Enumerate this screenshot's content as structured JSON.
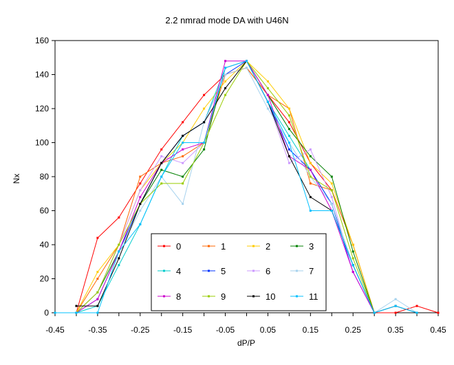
{
  "chart_data": {
    "type": "line",
    "title": "2.2 nmrad mode DA with U46N",
    "xlabel": "dP/P",
    "ylabel": "Nx",
    "xlim": [
      -0.45,
      0.45
    ],
    "ylim": [
      0,
      160
    ],
    "x_ticks": [
      "-0.45",
      "-0.35",
      "-0.25",
      "-0.15",
      "-0.05",
      "0.05",
      "0.15",
      "0.25",
      "0.35",
      "0.45"
    ],
    "y_ticks": [
      "0",
      "20",
      "40",
      "60",
      "80",
      "100",
      "120",
      "140",
      "160"
    ],
    "grid": false,
    "legend_position": "bottom-center",
    "series": [
      {
        "name": "0",
        "color": "#ff0000",
        "x": [
          -0.45,
          -0.4,
          -0.35,
          -0.3,
          -0.25,
          -0.2,
          -0.15,
          -0.1,
          -0.05,
          0,
          0.05,
          0.1,
          0.15,
          0.2,
          0.25,
          0.3,
          0.35,
          0.4,
          0.45
        ],
        "y": [
          0,
          0,
          44,
          56,
          76,
          96,
          112,
          128,
          140,
          144,
          128,
          112,
          88,
          72,
          40,
          0,
          0,
          4,
          0
        ]
      },
      {
        "name": "1",
        "color": "#ff6600",
        "x": [
          -0.4,
          -0.35,
          -0.3,
          -0.25,
          -0.2,
          -0.15,
          -0.1,
          -0.05,
          0,
          0.05,
          0.1,
          0.15,
          0.2,
          0.25,
          0.3
        ],
        "y": [
          0,
          20,
          40,
          80,
          88,
          92,
          100,
          140,
          144,
          128,
          120,
          76,
          72,
          40,
          0
        ]
      },
      {
        "name": "2",
        "color": "#ffcc00",
        "x": [
          -0.4,
          -0.35,
          -0.3,
          -0.25,
          -0.2,
          -0.15,
          -0.1,
          -0.05,
          0,
          0.05,
          0.1,
          0.15,
          0.2,
          0.25,
          0.3
        ],
        "y": [
          0,
          24,
          40,
          72,
          88,
          100,
          120,
          136,
          148,
          136,
          120,
          88,
          76,
          40,
          0
        ]
      },
      {
        "name": "3",
        "color": "#008000",
        "x": [
          -0.4,
          -0.35,
          -0.3,
          -0.25,
          -0.2,
          -0.15,
          -0.1,
          -0.05,
          0,
          0.05,
          0.1,
          0.15,
          0.2,
          0.25,
          0.3
        ],
        "y": [
          0,
          12,
          36,
          64,
          84,
          80,
          96,
          144,
          148,
          128,
          108,
          92,
          80,
          36,
          0
        ]
      },
      {
        "name": "4",
        "color": "#00cccc",
        "x": [
          -0.4,
          -0.35,
          -0.3,
          -0.25,
          -0.2,
          -0.15,
          -0.1,
          -0.05,
          0,
          0.05,
          0.1,
          0.15,
          0.2,
          0.25,
          0.3
        ],
        "y": [
          0,
          4,
          28,
          52,
          80,
          104,
          112,
          144,
          148,
          124,
          104,
          84,
          64,
          28,
          0
        ]
      },
      {
        "name": "5",
        "color": "#0033ff",
        "x": [
          -0.4,
          -0.35,
          -0.3,
          -0.25,
          -0.2,
          -0.15,
          -0.1,
          -0.05,
          0,
          0.05,
          0.1,
          0.15,
          0.2,
          0.25,
          0.3
        ],
        "y": [
          0,
          8,
          36,
          64,
          88,
          104,
          112,
          140,
          148,
          124,
          96,
          84,
          64,
          24,
          0
        ]
      },
      {
        "name": "6",
        "color": "#cc99ff",
        "x": [
          -0.4,
          -0.35,
          -0.3,
          -0.25,
          -0.2,
          -0.15,
          -0.1,
          -0.05,
          0,
          0.05,
          0.1,
          0.15,
          0.2,
          0.25,
          0.3
        ],
        "y": [
          0,
          12,
          40,
          72,
          92,
          88,
          100,
          144,
          148,
          124,
          88,
          96,
          68,
          24,
          0
        ]
      },
      {
        "name": "7",
        "color": "#a6d2ee",
        "x": [
          -0.4,
          -0.35,
          -0.3,
          -0.25,
          -0.2,
          -0.15,
          -0.1,
          -0.05,
          0,
          0.05,
          0.1,
          0.15,
          0.2,
          0.25,
          0.3,
          0.35,
          0.4
        ],
        "y": [
          0,
          8,
          36,
          60,
          80,
          64,
          112,
          140,
          144,
          120,
          100,
          80,
          64,
          28,
          0,
          8,
          0
        ]
      },
      {
        "name": "8",
        "color": "#cc00cc",
        "x": [
          -0.4,
          -0.35,
          -0.3,
          -0.25,
          -0.2,
          -0.15,
          -0.1,
          -0.05,
          0,
          0.05,
          0.1,
          0.15,
          0.2,
          0.25,
          0.3
        ],
        "y": [
          0,
          8,
          36,
          68,
          88,
          96,
          100,
          148,
          148,
          128,
          92,
          84,
          60,
          24,
          0
        ]
      },
      {
        "name": "9",
        "color": "#99cc00",
        "x": [
          -0.4,
          -0.35,
          -0.3,
          -0.25,
          -0.2,
          -0.15,
          -0.1,
          -0.05,
          0,
          0.05,
          0.1,
          0.15,
          0.2,
          0.25,
          0.3
        ],
        "y": [
          0,
          12,
          40,
          64,
          76,
          76,
          100,
          128,
          148,
          132,
          116,
          80,
          72,
          32,
          0
        ]
      },
      {
        "name": "10",
        "color": "#000000",
        "x": [
          -0.4,
          -0.35,
          -0.3,
          -0.25,
          -0.2,
          -0.15,
          -0.1,
          -0.05,
          0,
          0.05,
          0.1,
          0.15,
          0.2,
          0.25,
          0.3,
          0.35,
          0.4
        ],
        "y": [
          4,
          4,
          32,
          64,
          88,
          104,
          112,
          132,
          148,
          124,
          92,
          68,
          60,
          28,
          0,
          4,
          0
        ]
      },
      {
        "name": "11",
        "color": "#00c0ff",
        "x": [
          -0.45,
          -0.4,
          -0.35,
          -0.3,
          -0.25,
          -0.2,
          -0.15,
          -0.1,
          -0.05,
          0,
          0.05,
          0.1,
          0.15,
          0.2,
          0.25,
          0.3,
          0.35,
          0.4
        ],
        "y": [
          0,
          0,
          0,
          36,
          52,
          80,
          100,
          100,
          144,
          148,
          124,
          100,
          60,
          60,
          28,
          0,
          4,
          0
        ]
      }
    ]
  }
}
